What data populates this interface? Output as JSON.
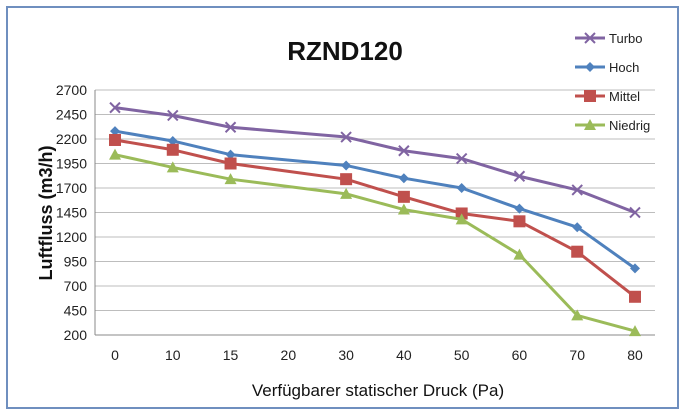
{
  "chart_data": {
    "type": "line",
    "title": "RZND120",
    "xlabel": "Verfügbarer statischer Druck (Pa)",
    "ylabel": "Luftfluss (m3/h)",
    "x": [
      0,
      10,
      15,
      20,
      30,
      40,
      50,
      60,
      70,
      80
    ],
    "x_ticks": [
      "0",
      "10",
      "15",
      "20",
      "30",
      "40",
      "50",
      "60",
      "70",
      "80"
    ],
    "y_ticks": [
      "200",
      "450",
      "700",
      "950",
      "1200",
      "1450",
      "1700",
      "1950",
      "2200",
      "2450",
      "2700"
    ],
    "ylim": [
      200,
      2700
    ],
    "grid": "horizontal",
    "legend_position": "top-right",
    "series": [
      {
        "name": "Turbo",
        "color": "#8064a2",
        "marker": "x",
        "points": [
          [
            0,
            2520
          ],
          [
            10,
            2440
          ],
          [
            15,
            2320
          ],
          [
            30,
            2220
          ],
          [
            40,
            2080
          ],
          [
            50,
            2000
          ],
          [
            60,
            1820
          ],
          [
            70,
            1680
          ],
          [
            80,
            1450
          ]
        ]
      },
      {
        "name": "Hoch",
        "color": "#4f81bd",
        "marker": "diamond",
        "points": [
          [
            0,
            2280
          ],
          [
            10,
            2180
          ],
          [
            15,
            2040
          ],
          [
            30,
            1930
          ],
          [
            40,
            1800
          ],
          [
            50,
            1700
          ],
          [
            60,
            1490
          ],
          [
            70,
            1300
          ],
          [
            80,
            880
          ]
        ]
      },
      {
        "name": "Mittel",
        "color": "#c0504d",
        "marker": "square",
        "points": [
          [
            0,
            2190
          ],
          [
            10,
            2090
          ],
          [
            15,
            1950
          ],
          [
            30,
            1790
          ],
          [
            40,
            1610
          ],
          [
            50,
            1440
          ],
          [
            60,
            1360
          ],
          [
            70,
            1050
          ],
          [
            80,
            590
          ]
        ]
      },
      {
        "name": "Niedrig",
        "color": "#9bbb59",
        "marker": "triangle",
        "points": [
          [
            0,
            2040
          ],
          [
            10,
            1910
          ],
          [
            15,
            1790
          ],
          [
            30,
            1640
          ],
          [
            40,
            1480
          ],
          [
            50,
            1380
          ],
          [
            60,
            1020
          ],
          [
            70,
            400
          ],
          [
            80,
            240
          ]
        ]
      }
    ]
  }
}
